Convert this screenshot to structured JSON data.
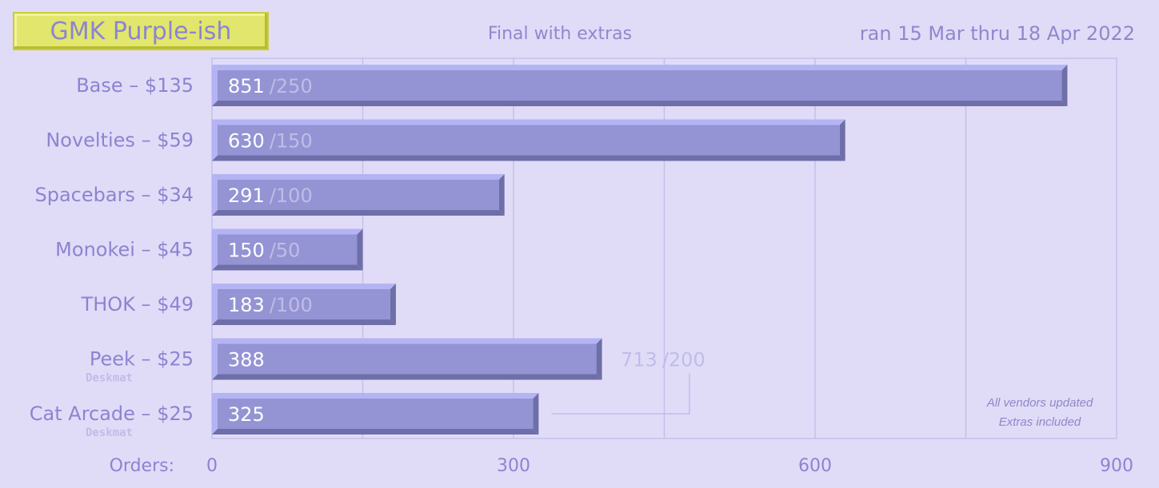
{
  "header": {
    "title": "GMK Purple-ish",
    "subtitle": "Final with extras",
    "date_range": "ran 15 Mar thru 18 Apr 2022"
  },
  "notes": {
    "line1": "All vendors updated",
    "line2": "Extras included"
  },
  "colors": {
    "background": "#e0dcf8",
    "bar_face": "#9494d4",
    "bar_top": "#b4b4f4",
    "bar_shadow": "#6e6ea8",
    "label": "#8c84d0",
    "grid": "#c4c0e8",
    "ghost": "#c0bce8"
  },
  "chart_data": {
    "type": "bar",
    "orientation": "horizontal",
    "title": "GMK Purple-ish",
    "subtitle": "Final with extras",
    "xlabel": "Orders:",
    "xlim": [
      0,
      900
    ],
    "xticks": [
      0,
      300,
      600,
      900
    ],
    "grid": true,
    "categories": [
      {
        "label": "Base – $135",
        "sublabel": "",
        "value": 851,
        "target": "/250"
      },
      {
        "label": "Novelties – $59",
        "sublabel": "",
        "value": 630,
        "target": "/150"
      },
      {
        "label": "Spacebars – $34",
        "sublabel": "",
        "value": 291,
        "target": "/100"
      },
      {
        "label": "Monokei – $45",
        "sublabel": "",
        "value": 150,
        "target": "/50"
      },
      {
        "label": "THOK – $49",
        "sublabel": "",
        "value": 183,
        "target": "/100"
      },
      {
        "label": "Peek – $25",
        "sublabel": "Deskmat",
        "value": 388,
        "target": ""
      },
      {
        "label": "Cat Arcade – $25",
        "sublabel": "Deskmat",
        "value": 325,
        "target": ""
      }
    ],
    "combined_annotation": {
      "value": "713",
      "target": "/200",
      "applies_to": [
        "Peek – $25",
        "Cat Arcade – $25"
      ]
    }
  }
}
